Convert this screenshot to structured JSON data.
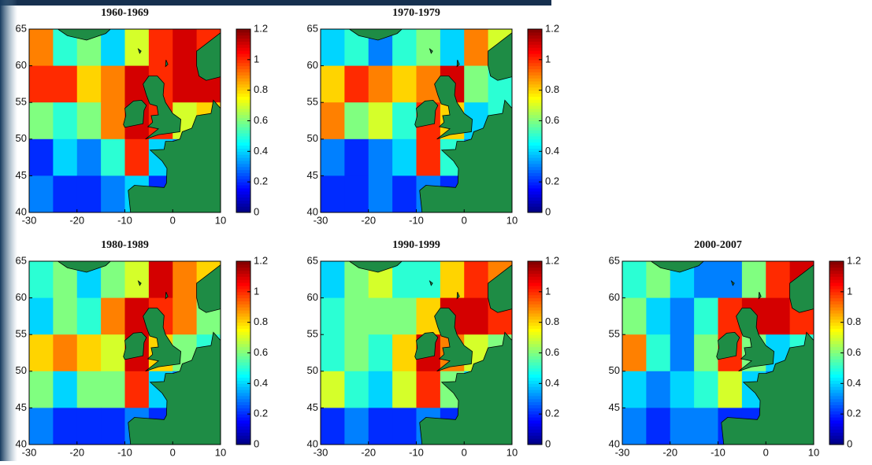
{
  "chart_data": [
    {
      "type": "heatmap",
      "title": "1960-1969",
      "colormap": "jet",
      "land_color": "#1e8c45",
      "x": [
        -27.5,
        -22.5,
        -17.5,
        -12.5,
        -7.5,
        -2.5,
        2.5,
        7.5
      ],
      "y": [
        62.5,
        57.5,
        52.5,
        47.5,
        42.5
      ],
      "values": [
        [
          0.9,
          0.5,
          0.6,
          0.4,
          0.7,
          1.0,
          1.1,
          1.0
        ],
        [
          1.0,
          1.0,
          0.8,
          0.9,
          1.1,
          1.0,
          1.1,
          1.1
        ],
        [
          0.6,
          0.5,
          0.6,
          0.9,
          1.1,
          1.0,
          0.7,
          0.8
        ],
        [
          0.2,
          0.4,
          0.3,
          0.5,
          1.0,
          0.4,
          0.3,
          0.3
        ],
        [
          0.3,
          0.2,
          0.2,
          0.3,
          0.4,
          0.2,
          0.2,
          0.2
        ]
      ],
      "xlim": [
        -30,
        10
      ],
      "ylim": [
        40,
        65
      ],
      "xticks": [
        -30,
        -20,
        -10,
        0,
        10
      ],
      "yticks": [
        40,
        45,
        50,
        55,
        60,
        65
      ],
      "clim": [
        0,
        1.2
      ],
      "cticks": [
        0,
        0.2,
        0.4,
        0.6,
        0.8,
        1,
        1.2
      ]
    },
    {
      "type": "heatmap",
      "title": "1970-1979",
      "colormap": "jet",
      "land_color": "#1e8c45",
      "x": [
        -27.5,
        -22.5,
        -17.5,
        -12.5,
        -7.5,
        -2.5,
        2.5,
        7.5
      ],
      "y": [
        62.5,
        57.5,
        52.5,
        47.5,
        42.5
      ],
      "values": [
        [
          0.4,
          0.5,
          0.3,
          0.5,
          0.6,
          0.4,
          0.9,
          0.7
        ],
        [
          0.8,
          1.0,
          0.9,
          0.8,
          0.9,
          1.1,
          0.6,
          0.5
        ],
        [
          0.9,
          0.6,
          0.7,
          0.5,
          1.0,
          0.8,
          0.4,
          0.5
        ],
        [
          0.3,
          0.2,
          0.3,
          0.4,
          1.0,
          0.5,
          0.3,
          0.3
        ],
        [
          0.2,
          0.2,
          0.3,
          0.2,
          0.3,
          0.2,
          0.2,
          0.2
        ]
      ],
      "xlim": [
        -30,
        10
      ],
      "ylim": [
        40,
        65
      ],
      "xticks": [
        -30,
        -20,
        -10,
        0,
        10
      ],
      "yticks": [
        40,
        45,
        50,
        55,
        60,
        65
      ],
      "clim": [
        0,
        1.2
      ],
      "cticks": [
        0,
        0.2,
        0.4,
        0.6,
        0.8,
        1,
        1.2
      ]
    },
    {
      "type": "heatmap",
      "title": "1980-1989",
      "colormap": "jet",
      "land_color": "#1e8c45",
      "x": [
        -27.5,
        -22.5,
        -17.5,
        -12.5,
        -7.5,
        -2.5,
        2.5,
        7.5
      ],
      "y": [
        62.5,
        57.5,
        52.5,
        47.5,
        42.5
      ],
      "values": [
        [
          0.5,
          0.6,
          0.4,
          0.6,
          0.7,
          1.1,
          0.9,
          0.8
        ],
        [
          0.4,
          0.6,
          0.5,
          0.9,
          1.1,
          1.0,
          0.9,
          0.6
        ],
        [
          0.8,
          0.9,
          0.8,
          0.7,
          1.1,
          0.8,
          0.6,
          0.5
        ],
        [
          0.6,
          0.4,
          0.6,
          0.6,
          1.0,
          0.4,
          0.3,
          0.3
        ],
        [
          0.3,
          0.2,
          0.2,
          0.2,
          0.3,
          0.2,
          0.2,
          0.2
        ]
      ],
      "xlim": [
        -30,
        10
      ],
      "ylim": [
        40,
        65
      ],
      "xticks": [
        -30,
        -20,
        -10,
        0,
        10
      ],
      "yticks": [
        40,
        45,
        50,
        55,
        60,
        65
      ],
      "clim": [
        0,
        1.2
      ],
      "cticks": [
        0,
        0.2,
        0.4,
        0.6,
        0.8,
        1,
        1.2
      ]
    },
    {
      "type": "heatmap",
      "title": "1990-1999",
      "colormap": "jet",
      "land_color": "#1e8c45",
      "x": [
        -27.5,
        -22.5,
        -17.5,
        -12.5,
        -7.5,
        -2.5,
        2.5,
        7.5
      ],
      "y": [
        62.5,
        57.5,
        52.5,
        47.5,
        42.5
      ],
      "values": [
        [
          0.4,
          0.6,
          0.7,
          0.5,
          0.5,
          0.8,
          1.0,
          0.9
        ],
        [
          0.5,
          0.6,
          0.6,
          0.6,
          0.8,
          1.1,
          1.1,
          1.0
        ],
        [
          0.5,
          0.6,
          0.5,
          0.8,
          1.1,
          0.9,
          0.7,
          0.6
        ],
        [
          0.7,
          0.5,
          0.4,
          0.7,
          1.0,
          0.6,
          0.4,
          0.3
        ],
        [
          0.2,
          0.3,
          0.2,
          0.2,
          0.3,
          0.2,
          0.2,
          0.2
        ]
      ],
      "xlim": [
        -30,
        10
      ],
      "ylim": [
        40,
        65
      ],
      "xticks": [
        -30,
        -20,
        -10,
        0,
        10
      ],
      "yticks": [
        40,
        45,
        50,
        55,
        60,
        65
      ],
      "clim": [
        0,
        1.2
      ],
      "cticks": [
        0,
        0.2,
        0.4,
        0.6,
        0.8,
        1,
        1.2
      ]
    },
    {
      "type": "heatmap",
      "title": "2000-2007",
      "colormap": "jet",
      "land_color": "#1e8c45",
      "x": [
        -27.5,
        -22.5,
        -17.5,
        -12.5,
        -7.5,
        -2.5,
        2.5,
        7.5
      ],
      "y": [
        62.5,
        57.5,
        52.5,
        47.5,
        42.5
      ],
      "values": [
        [
          0.5,
          0.6,
          0.4,
          0.3,
          0.3,
          0.6,
          1.0,
          1.1
        ],
        [
          0.6,
          0.4,
          0.3,
          0.5,
          1.0,
          1.1,
          1.1,
          1.0
        ],
        [
          0.9,
          0.5,
          0.3,
          0.6,
          1.0,
          0.6,
          0.4,
          0.5
        ],
        [
          0.4,
          0.3,
          0.4,
          0.5,
          0.7,
          0.4,
          0.3,
          0.3
        ],
        [
          0.3,
          0.2,
          0.3,
          0.3,
          0.2,
          0.2,
          0.2,
          0.2
        ]
      ],
      "xlim": [
        -30,
        10
      ],
      "ylim": [
        40,
        65
      ],
      "xticks": [
        -30,
        -20,
        -10,
        0,
        10
      ],
      "yticks": [
        40,
        45,
        50,
        55,
        60,
        65
      ],
      "clim": [
        0,
        1.2
      ],
      "cticks": [
        0,
        0.2,
        0.4,
        0.6,
        0.8,
        1,
        1.2
      ]
    }
  ]
}
